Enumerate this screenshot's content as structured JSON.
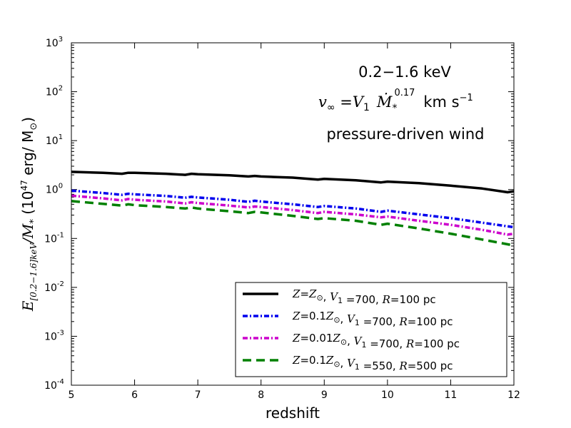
{
  "chart_data": {
    "type": "line",
    "xlabel": "redshift",
    "ylabel": {
      "E": "E",
      "sub": "[0.2−1.6]keV",
      "mid": "/M",
      "star": "*",
      "open": " (10",
      "exp47": "47",
      "units": " erg/ M",
      "sun": "⊙",
      "close": ")"
    },
    "xlim": [
      5,
      12
    ],
    "ylim_log10": [
      -4,
      3
    ],
    "x_ticks": [
      "5",
      "6",
      "7",
      "8",
      "9",
      "10",
      "11",
      "12"
    ],
    "y_ticks": [
      {
        "base": "10",
        "exp": "-4",
        "log": -4
      },
      {
        "base": "10",
        "exp": "-3",
        "log": -3
      },
      {
        "base": "10",
        "exp": "-2",
        "log": -2
      },
      {
        "base": "10",
        "exp": "-1",
        "log": -1
      },
      {
        "base": "10",
        "exp": "0",
        "log": 0
      },
      {
        "base": "10",
        "exp": "1",
        "log": 1
      },
      {
        "base": "10",
        "exp": "2",
        "log": 2
      },
      {
        "base": "10",
        "exp": "3",
        "log": 3
      }
    ],
    "annotations": {
      "band": "0.2−1.6 keV",
      "v": "v",
      "inf": "∞",
      "eq": " =",
      "V": "V",
      "one": "1",
      "M": "Ṁ",
      "mstar": "*",
      "exp": "0.17",
      "units": "km s",
      "neg1": "−1",
      "wind": "pressure-driven wind"
    },
    "series": [
      {
        "name": "Z=Z⊙, V1=700, R=100 pc",
        "color": "#000000",
        "style": "solid",
        "legend": [
          {
            "t": "Z",
            "i": true
          },
          {
            "t": "=",
            "i": false
          },
          {
            "t": "Z",
            "i": true
          },
          {
            "t": "⊙",
            "i": false,
            "sub": true
          },
          {
            "t": ", ",
            "i": false
          },
          {
            "t": "V",
            "i": true
          },
          {
            "t": "1",
            "i": false,
            "sub": true
          },
          {
            "t": " =700, ",
            "i": false
          },
          {
            "t": "R",
            "i": true
          },
          {
            "t": "=100 pc",
            "i": false
          }
        ],
        "x": [
          5.0,
          5.5,
          5.8,
          5.9,
          6.0,
          6.5,
          6.8,
          6.9,
          7.0,
          7.5,
          7.8,
          7.9,
          8.0,
          8.5,
          8.9,
          9.0,
          9.5,
          9.9,
          10.0,
          10.5,
          11.0,
          11.5,
          11.9,
          12.0
        ],
        "y": [
          2.3,
          2.2,
          2.1,
          2.2,
          2.2,
          2.1,
          2.0,
          2.1,
          2.05,
          1.95,
          1.85,
          1.9,
          1.85,
          1.75,
          1.6,
          1.65,
          1.55,
          1.4,
          1.45,
          1.35,
          1.2,
          1.05,
          0.88,
          0.92
        ]
      },
      {
        "name": "Z=0.1Z⊙, V1=700, R=100 pc",
        "color": "#0000ee",
        "style": "dashdot",
        "legend": [
          {
            "t": "Z",
            "i": true
          },
          {
            "t": "=0.1",
            "i": false
          },
          {
            "t": "Z",
            "i": true
          },
          {
            "t": "⊙",
            "i": false,
            "sub": true
          },
          {
            "t": ", ",
            "i": false
          },
          {
            "t": "V",
            "i": true
          },
          {
            "t": "1",
            "i": false,
            "sub": true
          },
          {
            "t": " =700, ",
            "i": false
          },
          {
            "t": "R",
            "i": true
          },
          {
            "t": "=100 pc",
            "i": false
          }
        ],
        "x": [
          5.0,
          5.5,
          5.8,
          5.9,
          6.0,
          6.5,
          6.8,
          6.9,
          7.0,
          7.5,
          7.8,
          7.9,
          8.0,
          8.5,
          8.9,
          9.0,
          9.5,
          9.9,
          10.0,
          10.5,
          11.0,
          11.5,
          12.0
        ],
        "y": [
          0.95,
          0.85,
          0.78,
          0.82,
          0.8,
          0.74,
          0.68,
          0.71,
          0.69,
          0.62,
          0.56,
          0.59,
          0.57,
          0.5,
          0.44,
          0.46,
          0.41,
          0.35,
          0.37,
          0.31,
          0.26,
          0.21,
          0.17
        ]
      },
      {
        "name": "Z=0.01Z⊙, V1=700, R=100 pc",
        "color": "#cc00cc",
        "style": "dashdot",
        "legend": [
          {
            "t": "Z",
            "i": true
          },
          {
            "t": "=0.01",
            "i": false
          },
          {
            "t": "Z",
            "i": true
          },
          {
            "t": "⊙",
            "i": false,
            "sub": true
          },
          {
            "t": ", ",
            "i": false
          },
          {
            "t": "V",
            "i": true
          },
          {
            "t": "1",
            "i": false,
            "sub": true
          },
          {
            "t": " =700, ",
            "i": false
          },
          {
            "t": "R",
            "i": true
          },
          {
            "t": "=100 pc",
            "i": false
          }
        ],
        "x": [
          5.0,
          5.5,
          5.8,
          5.9,
          6.0,
          6.5,
          6.8,
          6.9,
          7.0,
          7.5,
          7.8,
          7.9,
          8.0,
          8.5,
          8.9,
          9.0,
          9.5,
          9.9,
          10.0,
          10.5,
          11.0,
          11.5,
          11.9,
          12.0
        ],
        "y": [
          0.75,
          0.66,
          0.6,
          0.64,
          0.62,
          0.57,
          0.52,
          0.55,
          0.53,
          0.47,
          0.43,
          0.45,
          0.44,
          0.38,
          0.33,
          0.35,
          0.31,
          0.27,
          0.28,
          0.23,
          0.19,
          0.15,
          0.12,
          0.125
        ]
      },
      {
        "name": "Z=0.1Z⊙, V1=550, R=500 pc",
        "color": "#008000",
        "style": "dashed",
        "legend": [
          {
            "t": "Z",
            "i": true
          },
          {
            "t": "=0.1",
            "i": false
          },
          {
            "t": "Z",
            "i": true
          },
          {
            "t": "⊙",
            "i": false,
            "sub": true
          },
          {
            "t": ", ",
            "i": false
          },
          {
            "t": "V",
            "i": true
          },
          {
            "t": "1",
            "i": false,
            "sub": true
          },
          {
            "t": " =550, ",
            "i": false
          },
          {
            "t": "R",
            "i": true
          },
          {
            "t": "=500 pc",
            "i": false
          }
        ],
        "x": [
          5.0,
          5.5,
          5.8,
          5.9,
          6.0,
          6.5,
          6.8,
          6.9,
          7.0,
          7.5,
          7.8,
          7.9,
          8.0,
          8.5,
          8.9,
          9.0,
          9.5,
          9.9,
          10.0,
          10.5,
          11.0,
          11.5,
          12.0
        ],
        "y": [
          0.58,
          0.51,
          0.47,
          0.5,
          0.48,
          0.44,
          0.41,
          0.43,
          0.41,
          0.36,
          0.33,
          0.35,
          0.34,
          0.29,
          0.25,
          0.26,
          0.23,
          0.19,
          0.2,
          0.16,
          0.125,
          0.095,
          0.072
        ]
      }
    ]
  }
}
